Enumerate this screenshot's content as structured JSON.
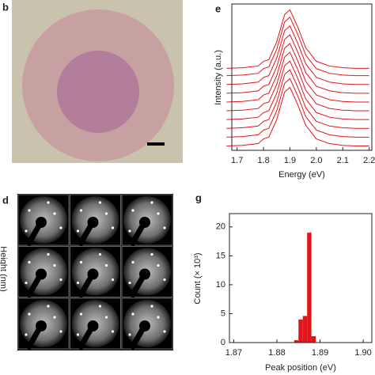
{
  "panels": {
    "b": {
      "label": "b"
    },
    "d": {
      "label": "d",
      "side_label": "Height (nm)"
    }
  },
  "chart_data": [
    {
      "type": "line",
      "label": "e",
      "x_label": "Energy (eV)",
      "y_label": "Intensity (a.u.)",
      "x": [
        1.66,
        1.72,
        1.78,
        1.8,
        1.82,
        1.85,
        1.88,
        1.9,
        1.93,
        1.96,
        2.0,
        2.05,
        2.1,
        2.15,
        2.2
      ],
      "xlim": [
        1.68,
        2.21
      ],
      "xticks": [
        1.7,
        1.8,
        1.9,
        {
          "value": 2,
          "label": "2.0"
        },
        2.1,
        2.2
      ],
      "ylim": [
        0,
        100
      ],
      "series": [
        {
          "color": "#e3151b",
          "values": [
            3,
            3.4,
            4.6,
            7.8,
            9,
            21,
            39.8,
            43,
            31,
            17,
            7.8,
            4.6,
            3.4,
            3,
            3
          ]
        },
        {
          "color": "#e3151b",
          "values": [
            9,
            9.4,
            10.6,
            13.8,
            15,
            27,
            45.8,
            49,
            37,
            23,
            13.8,
            10.6,
            9.4,
            9,
            9
          ]
        },
        {
          "color": "#e3151b",
          "values": [
            15,
            15.4,
            16.6,
            19.8,
            21,
            33,
            51.8,
            55,
            43,
            29,
            19.8,
            16.6,
            15.4,
            15,
            15
          ]
        },
        {
          "color": "#e3151b",
          "values": [
            21,
            21.4,
            22.6,
            25.8,
            27,
            39,
            57.8,
            61,
            49,
            35,
            25.8,
            22.6,
            21.4,
            21,
            21
          ]
        },
        {
          "color": "#e3151b",
          "values": [
            27,
            27.4,
            28.6,
            31.8,
            33,
            45,
            63.8,
            67,
            55,
            41,
            31.8,
            28.6,
            27.4,
            27,
            27
          ]
        },
        {
          "color": "#e3151b",
          "values": [
            33,
            33.4,
            34.6,
            37.8,
            39,
            51,
            69.8,
            73,
            61,
            47,
            37.8,
            34.6,
            33.4,
            33,
            33
          ]
        },
        {
          "color": "#e3151b",
          "values": [
            39,
            39.4,
            40.6,
            43.8,
            45,
            57,
            75.8,
            79,
            67,
            53,
            43.8,
            40.6,
            39.4,
            39,
            39
          ]
        },
        {
          "color": "#e3151b",
          "values": [
            45,
            45.4,
            46.6,
            49.8,
            51,
            63,
            81.8,
            85,
            73,
            59,
            49.8,
            46.6,
            45.4,
            45,
            45
          ]
        },
        {
          "color": "#e3151b",
          "values": [
            51,
            51.4,
            52.6,
            55.8,
            57,
            69,
            87.8,
            91,
            79,
            65,
            55.8,
            52.6,
            51.4,
            51,
            51
          ]
        },
        {
          "color": "#e3151b",
          "values": [
            56,
            56.4,
            57.6,
            60.8,
            62,
            74,
            92.8,
            96,
            84,
            70,
            60.8,
            57.6,
            56.4,
            56,
            56
          ]
        }
      ]
    },
    {
      "type": "histogram",
      "label": "g",
      "x_label": "Peak position (eV)",
      "y_label": "Count (× 10³)",
      "bins": [
        1.884,
        1.885,
        1.886,
        1.887,
        1.888,
        1.889
      ],
      "values": [
        0.4,
        4,
        4.6,
        19,
        1.1
      ],
      "color": "#e3151b",
      "xlim": [
        1.869,
        1.902
      ],
      "xticks": [
        1.87,
        1.88,
        1.89,
        {
          "value": 1.9,
          "label": "1.90"
        }
      ],
      "ylim": [
        0,
        22.3
      ],
      "yticks": [
        0,
        5,
        10,
        15,
        20
      ]
    }
  ]
}
